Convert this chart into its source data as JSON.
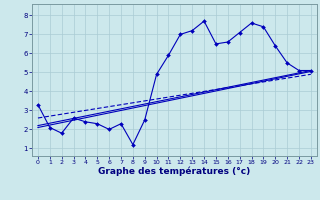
{
  "xlabel": "Graphe des températures (°c)",
  "bg_color": "#cce8ec",
  "grid_color": "#aaccd4",
  "line_color": "#0000bb",
  "x_ticks": [
    0,
    1,
    2,
    3,
    4,
    5,
    6,
    7,
    8,
    9,
    10,
    11,
    12,
    13,
    14,
    15,
    16,
    17,
    18,
    19,
    20,
    21,
    22,
    23
  ],
  "ylim": [
    0.6,
    8.6
  ],
  "xlim": [
    -0.5,
    23.5
  ],
  "series1_x": [
    0,
    1,
    2,
    3,
    4,
    5,
    6,
    7,
    8,
    9,
    10,
    11,
    12,
    13,
    14,
    15,
    16,
    17,
    18,
    19,
    20,
    21,
    22,
    23
  ],
  "series1_y": [
    3.3,
    2.1,
    1.8,
    2.6,
    2.4,
    2.3,
    2.0,
    2.3,
    1.2,
    2.5,
    4.9,
    5.9,
    7.0,
    7.2,
    7.7,
    6.5,
    6.6,
    7.1,
    7.6,
    7.4,
    6.4,
    5.5,
    5.1,
    5.1
  ],
  "series2_x": [
    0,
    23
  ],
  "series2_y": [
    2.2,
    5.1
  ],
  "series3_x": [
    0,
    23
  ],
  "series3_y": [
    2.6,
    4.9
  ],
  "series4_x": [
    0,
    23
  ],
  "series4_y": [
    2.1,
    5.05
  ],
  "yticks": [
    1,
    2,
    3,
    4,
    5,
    6,
    7,
    8
  ],
  "tick_fontsize": 4.5,
  "xlabel_fontsize": 6.5
}
